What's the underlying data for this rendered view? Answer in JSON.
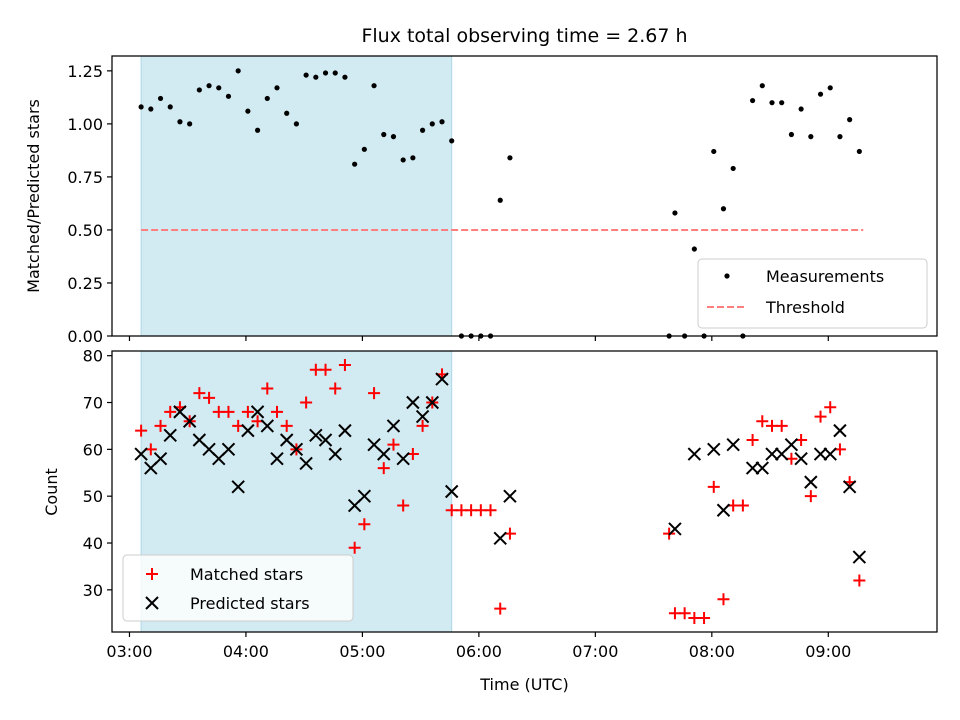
{
  "chart_data": [
    {
      "type": "scatter",
      "title": "Flux total observing time = 2.67 h",
      "xlabel": "",
      "ylabel": "Matched/Predicted stars",
      "ylim": [
        0,
        1.32
      ],
      "yticks": [
        0.0,
        0.25,
        0.5,
        0.75,
        1.0,
        1.25
      ],
      "ytick_labels": [
        "0.00",
        "0.25",
        "0.50",
        "0.75",
        "1.00",
        "1.25"
      ],
      "legend_position": "bottom-right",
      "colors": {
        "measurements": "#000000",
        "threshold": "#ff7f7f",
        "shade": "#add8e6"
      },
      "shaded_region": {
        "x_start": "03:06",
        "x_end": "05:46"
      },
      "threshold": {
        "name": "Threshold",
        "y": 0.5,
        "x_start": "03:06",
        "x_end": "09:18"
      },
      "series": [
        {
          "name": "Measurements",
          "points": [
            [
              "03:06",
              1.08
            ],
            [
              "03:11",
              1.07
            ],
            [
              "03:16",
              1.12
            ],
            [
              "03:21",
              1.08
            ],
            [
              "03:26",
              1.01
            ],
            [
              "03:31",
              1.0
            ],
            [
              "03:36",
              1.16
            ],
            [
              "03:41",
              1.18
            ],
            [
              "03:46",
              1.17
            ],
            [
              "03:51",
              1.13
            ],
            [
              "03:56",
              1.25
            ],
            [
              "04:01",
              1.06
            ],
            [
              "04:06",
              0.97
            ],
            [
              "04:11",
              1.12
            ],
            [
              "04:16",
              1.17
            ],
            [
              "04:21",
              1.05
            ],
            [
              "04:26",
              1.0
            ],
            [
              "04:31",
              1.23
            ],
            [
              "04:36",
              1.22
            ],
            [
              "04:41",
              1.24
            ],
            [
              "04:46",
              1.24
            ],
            [
              "04:51",
              1.22
            ],
            [
              "04:56",
              0.81
            ],
            [
              "05:01",
              0.88
            ],
            [
              "05:06",
              1.18
            ],
            [
              "05:11",
              0.95
            ],
            [
              "05:16",
              0.94
            ],
            [
              "05:21",
              0.83
            ],
            [
              "05:26",
              0.84
            ],
            [
              "05:31",
              0.97
            ],
            [
              "05:36",
              1.0
            ],
            [
              "05:41",
              1.01
            ],
            [
              "05:46",
              0.92
            ],
            [
              "05:51",
              0.0
            ],
            [
              "05:56",
              0.0
            ],
            [
              "06:01",
              0.0
            ],
            [
              "06:06",
              0.0
            ],
            [
              "06:11",
              0.64
            ],
            [
              "06:16",
              0.84
            ],
            [
              "07:38",
              0.0
            ],
            [
              "07:41",
              0.58
            ],
            [
              "07:46",
              0.0
            ],
            [
              "07:51",
              0.41
            ],
            [
              "07:56",
              0.0
            ],
            [
              "08:01",
              0.87
            ],
            [
              "08:06",
              0.6
            ],
            [
              "08:11",
              0.79
            ],
            [
              "08:16",
              0.0
            ],
            [
              "08:21",
              1.11
            ],
            [
              "08:26",
              1.18
            ],
            [
              "08:31",
              1.1
            ],
            [
              "08:36",
              1.1
            ],
            [
              "08:41",
              0.95
            ],
            [
              "08:46",
              1.07
            ],
            [
              "08:51",
              0.94
            ],
            [
              "08:56",
              1.14
            ],
            [
              "09:01",
              1.17
            ],
            [
              "09:06",
              0.94
            ],
            [
              "09:11",
              1.02
            ],
            [
              "09:16",
              0.87
            ]
          ]
        }
      ]
    },
    {
      "type": "scatter",
      "title": "",
      "xlabel": "Time (UTC)",
      "ylabel": "Count",
      "xlim": [
        "02:51",
        "09:56"
      ],
      "ylim": [
        21,
        81
      ],
      "yticks": [
        30,
        40,
        50,
        60,
        70,
        80
      ],
      "ytick_labels": [
        "30",
        "40",
        "50",
        "60",
        "70",
        "80"
      ],
      "xticks": [
        "03:00",
        "04:00",
        "05:00",
        "06:00",
        "07:00",
        "08:00",
        "09:00"
      ],
      "xtick_labels": [
        "03:00",
        "04:00",
        "05:00",
        "06:00",
        "07:00",
        "08:00",
        "09:00"
      ],
      "legend_position": "bottom-left",
      "colors": {
        "matched": "#ff0000",
        "predicted": "#000000",
        "shade": "#add8e6"
      },
      "shaded_region": {
        "x_start": "03:06",
        "x_end": "05:46"
      },
      "series": [
        {
          "name": "Matched stars",
          "marker": "plus",
          "points": [
            [
              "03:06",
              64
            ],
            [
              "03:11",
              60
            ],
            [
              "03:16",
              65
            ],
            [
              "03:21",
              68
            ],
            [
              "03:26",
              69
            ],
            [
              "03:31",
              66
            ],
            [
              "03:36",
              72
            ],
            [
              "03:41",
              71
            ],
            [
              "03:46",
              68
            ],
            [
              "03:51",
              68
            ],
            [
              "03:56",
              65
            ],
            [
              "04:01",
              68
            ],
            [
              "04:06",
              66
            ],
            [
              "04:11",
              73
            ],
            [
              "04:16",
              68
            ],
            [
              "04:21",
              65
            ],
            [
              "04:26",
              60
            ],
            [
              "04:31",
              70
            ],
            [
              "04:36",
              77
            ],
            [
              "04:41",
              77
            ],
            [
              "04:46",
              73
            ],
            [
              "04:51",
              78
            ],
            [
              "04:56",
              39
            ],
            [
              "05:01",
              44
            ],
            [
              "05:06",
              72
            ],
            [
              "05:11",
              56
            ],
            [
              "05:16",
              61
            ],
            [
              "05:21",
              48
            ],
            [
              "05:26",
              59
            ],
            [
              "05:31",
              65
            ],
            [
              "05:36",
              70
            ],
            [
              "05:41",
              76
            ],
            [
              "05:46",
              47
            ],
            [
              "05:51",
              47
            ],
            [
              "05:56",
              47
            ],
            [
              "06:01",
              47
            ],
            [
              "06:06",
              47
            ],
            [
              "06:11",
              26
            ],
            [
              "06:16",
              42
            ],
            [
              "07:38",
              42
            ],
            [
              "07:41",
              25
            ],
            [
              "07:46",
              25
            ],
            [
              "07:51",
              24
            ],
            [
              "07:56",
              24
            ],
            [
              "08:01",
              52
            ],
            [
              "08:06",
              28
            ],
            [
              "08:11",
              48
            ],
            [
              "08:16",
              48
            ],
            [
              "08:21",
              62
            ],
            [
              "08:26",
              66
            ],
            [
              "08:31",
              65
            ],
            [
              "08:36",
              65
            ],
            [
              "08:41",
              58
            ],
            [
              "08:46",
              62
            ],
            [
              "08:51",
              50
            ],
            [
              "08:56",
              67
            ],
            [
              "09:01",
              69
            ],
            [
              "09:06",
              60
            ],
            [
              "09:11",
              53
            ],
            [
              "09:16",
              32
            ]
          ]
        },
        {
          "name": "Predicted stars",
          "marker": "x",
          "points": [
            [
              "03:06",
              59
            ],
            [
              "03:11",
              56
            ],
            [
              "03:16",
              58
            ],
            [
              "03:21",
              63
            ],
            [
              "03:26",
              68
            ],
            [
              "03:31",
              66
            ],
            [
              "03:36",
              62
            ],
            [
              "03:41",
              60
            ],
            [
              "03:46",
              58
            ],
            [
              "03:51",
              60
            ],
            [
              "03:56",
              52
            ],
            [
              "04:01",
              64
            ],
            [
              "04:06",
              68
            ],
            [
              "04:11",
              65
            ],
            [
              "04:16",
              58
            ],
            [
              "04:21",
              62
            ],
            [
              "04:26",
              60
            ],
            [
              "04:31",
              57
            ],
            [
              "04:36",
              63
            ],
            [
              "04:41",
              62
            ],
            [
              "04:46",
              59
            ],
            [
              "04:51",
              64
            ],
            [
              "04:56",
              48
            ],
            [
              "05:01",
              50
            ],
            [
              "05:06",
              61
            ],
            [
              "05:11",
              59
            ],
            [
              "05:16",
              65
            ],
            [
              "05:21",
              58
            ],
            [
              "05:26",
              70
            ],
            [
              "05:31",
              67
            ],
            [
              "05:36",
              70
            ],
            [
              "05:41",
              75
            ],
            [
              "05:46",
              51
            ],
            [
              "06:11",
              41
            ],
            [
              "06:16",
              50
            ],
            [
              "07:41",
              43
            ],
            [
              "07:51",
              59
            ],
            [
              "08:01",
              60
            ],
            [
              "08:06",
              47
            ],
            [
              "08:11",
              61
            ],
            [
              "08:21",
              56
            ],
            [
              "08:26",
              56
            ],
            [
              "08:31",
              59
            ],
            [
              "08:36",
              59
            ],
            [
              "08:41",
              61
            ],
            [
              "08:46",
              58
            ],
            [
              "08:51",
              53
            ],
            [
              "08:56",
              59
            ],
            [
              "09:01",
              59
            ],
            [
              "09:06",
              64
            ],
            [
              "09:11",
              52
            ],
            [
              "09:16",
              37
            ]
          ]
        }
      ]
    }
  ]
}
